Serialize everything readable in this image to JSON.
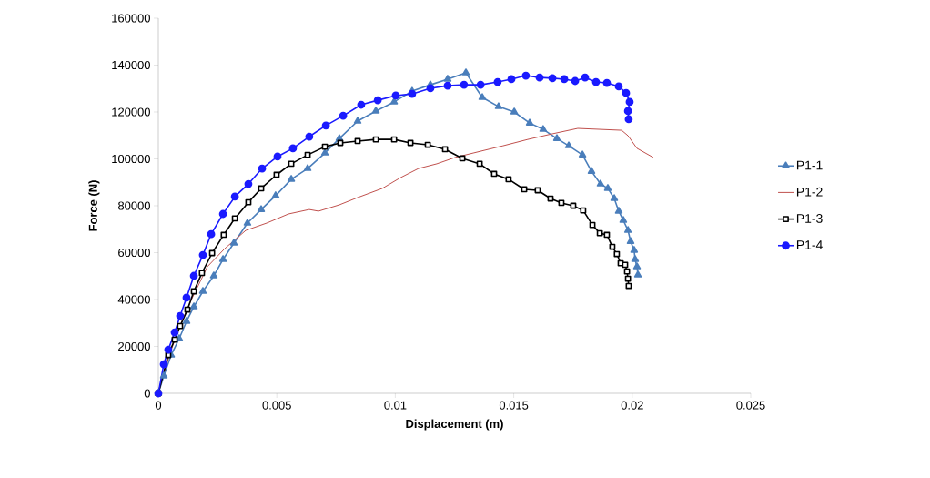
{
  "chart_data": {
    "type": "line",
    "xlabel": "Displacement (m)",
    "ylabel": "Force (N)",
    "xlim": [
      0,
      0.025
    ],
    "xticks": [
      0,
      0.005,
      0.01,
      0.015,
      0.02,
      0.025
    ],
    "ylim": [
      0,
      160000
    ],
    "yticks": [
      0,
      20000,
      40000,
      60000,
      80000,
      100000,
      120000,
      140000,
      160000
    ],
    "grid": false,
    "legend": "right",
    "line_style": "solid",
    "series": [
      {
        "name": "P1-1",
        "color": "#4a7ebb",
        "marker": "triangle",
        "x": [
          0,
          0.00023,
          0.00054,
          0.00088,
          0.00119,
          0.0015,
          0.00188,
          0.00234,
          0.00273,
          0.00319,
          0.00376,
          0.00434,
          0.00495,
          0.00561,
          0.0063,
          0.00703,
          0.00764,
          0.00841,
          0.00918,
          0.00995,
          0.01071,
          0.01148,
          0.01221,
          0.01298,
          0.01367,
          0.01436,
          0.01502,
          0.01567,
          0.01624,
          0.01682,
          0.01732,
          0.0179,
          0.01828,
          0.01866,
          0.01897,
          0.01924,
          0.01943,
          0.01962,
          0.01982,
          0.01993,
          0.02008,
          0.02012,
          0.0202,
          0.02024
        ],
        "values": [
          0,
          7400,
          16300,
          23300,
          30700,
          36900,
          43500,
          50100,
          57100,
          64100,
          72600,
          78400,
          84300,
          91300,
          95900,
          102500,
          108700,
          116100,
          120400,
          124300,
          128900,
          131600,
          134000,
          136700,
          126200,
          122300,
          120000,
          115300,
          112600,
          108700,
          105600,
          101700,
          94700,
          89300,
          87400,
          83100,
          77700,
          73800,
          69500,
          64800,
          61000,
          57100,
          54000,
          50500
        ]
      },
      {
        "name": "P1-2",
        "color": "#c0504d",
        "marker": "none",
        "x": [
          0,
          0.00023,
          0.00054,
          0.00088,
          0.00138,
          0.00207,
          0.0028,
          0.00369,
          0.00457,
          0.00549,
          0.00637,
          0.00676,
          0.00764,
          0.00841,
          0.00945,
          0.01022,
          0.01098,
          0.01175,
          0.01252,
          0.01329,
          0.01455,
          0.01559,
          0.01663,
          0.0177,
          0.01955,
          0.01982,
          0.0202,
          0.02089
        ],
        "values": [
          0,
          8500,
          18300,
          28000,
          39600,
          54000,
          61700,
          69500,
          72600,
          76500,
          78400,
          77700,
          80400,
          83500,
          87400,
          92000,
          95900,
          97900,
          100600,
          102500,
          105600,
          108300,
          110700,
          113000,
          112200,
          109900,
          104500,
          100600
        ]
      },
      {
        "name": "P1-3",
        "color": "#000000",
        "marker": "square",
        "x": [
          0,
          0.00042,
          0.00069,
          0.00092,
          0.00123,
          0.0015,
          0.00184,
          0.00227,
          0.00276,
          0.00323,
          0.0038,
          0.00434,
          0.00499,
          0.00561,
          0.0063,
          0.00703,
          0.00768,
          0.00841,
          0.00918,
          0.00995,
          0.01064,
          0.01137,
          0.0121,
          0.01283,
          0.01356,
          0.01417,
          0.01478,
          0.01544,
          0.01601,
          0.01655,
          0.01701,
          0.01751,
          0.01793,
          0.01832,
          0.01863,
          0.01893,
          0.01916,
          0.01935,
          0.01951,
          0.0197,
          0.01978,
          0.01982,
          0.01985
        ],
        "values": [
          0,
          16300,
          22900,
          28700,
          35700,
          43500,
          51300,
          59800,
          67600,
          74600,
          81500,
          87400,
          93200,
          97900,
          101700,
          105200,
          106800,
          107600,
          108300,
          108300,
          106800,
          106000,
          104100,
          100200,
          97900,
          93600,
          91300,
          87000,
          86600,
          83100,
          81200,
          80000,
          78000,
          71800,
          68300,
          67600,
          62500,
          59400,
          55500,
          54800,
          52000,
          48900,
          45800
        ]
      },
      {
        "name": "P1-4",
        "color": "#1a1aff",
        "marker": "circle",
        "x": [
          0,
          0.00023,
          0.00042,
          0.00069,
          0.00092,
          0.00119,
          0.0015,
          0.00188,
          0.00223,
          0.00273,
          0.00323,
          0.0038,
          0.00438,
          0.00503,
          0.00568,
          0.00637,
          0.00707,
          0.0078,
          0.00856,
          0.00926,
          0.01002,
          0.01071,
          0.01148,
          0.01221,
          0.0129,
          0.0136,
          0.01432,
          0.0149,
          0.01551,
          0.01609,
          0.01663,
          0.01713,
          0.01759,
          0.01801,
          0.01847,
          0.01893,
          0.01943,
          0.01974,
          0.01989,
          0.01982,
          0.01985
        ],
        "values": [
          0,
          12400,
          18600,
          26000,
          33000,
          40800,
          50100,
          59000,
          67900,
          76500,
          83900,
          89300,
          95900,
          101000,
          104500,
          109500,
          114200,
          118400,
          123100,
          125000,
          127000,
          127700,
          130100,
          131200,
          131600,
          131600,
          132800,
          134000,
          135500,
          134700,
          134400,
          134000,
          133200,
          134700,
          132800,
          132400,
          130900,
          128100,
          124300,
          120400,
          116900
        ]
      }
    ]
  }
}
